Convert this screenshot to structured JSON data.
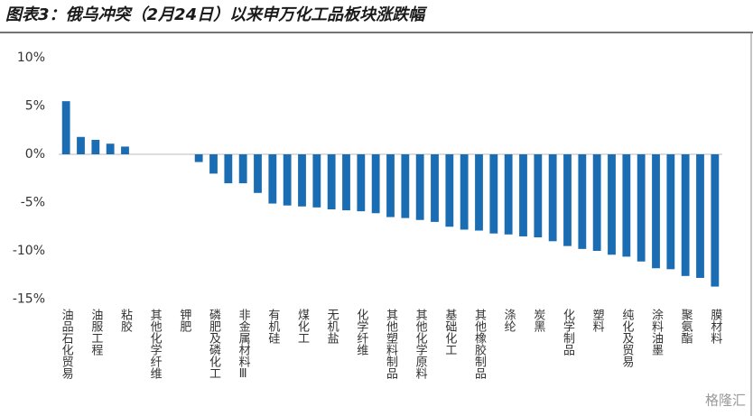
{
  "chart_data": {
    "type": "bar",
    "title": "图表3：俄乌冲突（2月24日）以来申万化工品板块涨跌幅",
    "watermark": "格隆汇",
    "color": "#1b6db3",
    "categories": [
      "油品石化贸易",
      null,
      "油服工程",
      null,
      "粘胶",
      null,
      "其他化学纤维",
      null,
      "钾肥",
      null,
      "磷肥及磷化工",
      null,
      "非金属材料Ⅲ",
      null,
      "有机硅",
      null,
      "煤化工",
      null,
      "无机盐",
      null,
      "化学纤维",
      null,
      "其他塑料制品",
      null,
      "其他化学原料",
      null,
      "基础化工",
      null,
      "其他橡胶制品",
      null,
      "涤纶",
      null,
      "炭黑",
      null,
      "化学制品",
      null,
      "塑料",
      null,
      "纯化及贸易",
      null,
      "涂料油墨",
      null,
      "聚氨酯",
      null,
      "膜材料"
    ],
    "values": [
      5.5,
      1.8,
      1.5,
      1.1,
      0.8,
      0,
      0,
      0,
      0,
      -0.8,
      -2.0,
      -3.0,
      -3.0,
      -4.0,
      -5.1,
      -5.3,
      -5.4,
      -5.5,
      -5.7,
      -5.8,
      -5.9,
      -6.1,
      -6.5,
      -6.6,
      -6.8,
      -7.0,
      -7.5,
      -7.8,
      -7.9,
      -8.2,
      -8.3,
      -8.5,
      -8.6,
      -9.0,
      -9.5,
      -9.8,
      -10.0,
      -10.4,
      -10.6,
      -11.1,
      -11.8,
      -11.9,
      -12.6,
      -12.8,
      -13.7
    ],
    "ylim": [
      -15,
      10
    ],
    "yticks": [
      {
        "value": 10,
        "label": "10%"
      },
      {
        "value": 5,
        "label": "5%"
      },
      {
        "value": 0,
        "label": "0%"
      },
      {
        "value": -5,
        "label": "-5%"
      },
      {
        "value": -10,
        "label": "-10%"
      },
      {
        "value": -15,
        "label": "-15%"
      }
    ]
  }
}
